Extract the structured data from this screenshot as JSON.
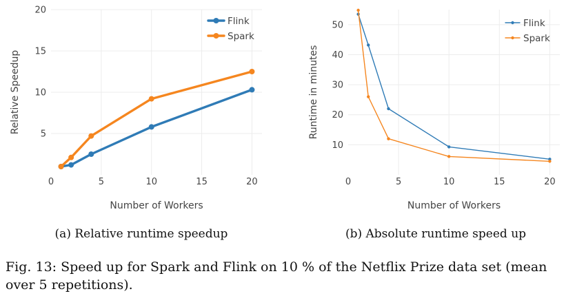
{
  "chart_data": [
    {
      "type": "line",
      "subcaption": "(a) Relative runtime speedup",
      "xlabel": "Number of Workers",
      "ylabel": "Relative Speedup",
      "xlim": [
        0,
        21
      ],
      "ylim": [
        0,
        20
      ],
      "xticks": [
        0,
        5,
        10,
        15,
        20
      ],
      "yticks": [
        5,
        10,
        15,
        20
      ],
      "grid": true,
      "legend": "top-right",
      "series": [
        {
          "name": "Flink",
          "color": "#2f7bb6",
          "x": [
            1,
            2,
            4,
            10,
            20
          ],
          "y": [
            1.0,
            1.2,
            2.5,
            5.8,
            10.3
          ]
        },
        {
          "name": "Spark",
          "color": "#f5861f",
          "x": [
            1,
            2,
            4,
            10,
            20
          ],
          "y": [
            1.0,
            2.1,
            4.7,
            9.2,
            12.5
          ]
        }
      ]
    },
    {
      "type": "line",
      "subcaption": "(b) Absolute runtime speed up",
      "xlabel": "Number of Workers",
      "ylabel": "Runtime in minutes",
      "xlim": [
        0,
        21
      ],
      "ylim": [
        0,
        55
      ],
      "xticks": [
        0,
        5,
        10,
        15,
        20
      ],
      "yticks": [
        10,
        20,
        30,
        40,
        50
      ],
      "grid": true,
      "legend": "top-right",
      "series": [
        {
          "name": "Flink",
          "color": "#2f7bb6",
          "x": [
            1,
            2,
            4,
            10,
            20
          ],
          "y": [
            53.5,
            43.2,
            22.0,
            9.3,
            5.2
          ]
        },
        {
          "name": "Spark",
          "color": "#f5861f",
          "x": [
            1,
            2,
            4,
            10,
            20
          ],
          "y": [
            54.8,
            26.0,
            12.0,
            6.1,
            4.5
          ]
        }
      ]
    }
  ],
  "caption": {
    "line1": "Fig. 13: Speed up for Spark and Flink on 10 % of the Netflix Prize data set (mean",
    "line2": "over 5 repetitions)."
  }
}
